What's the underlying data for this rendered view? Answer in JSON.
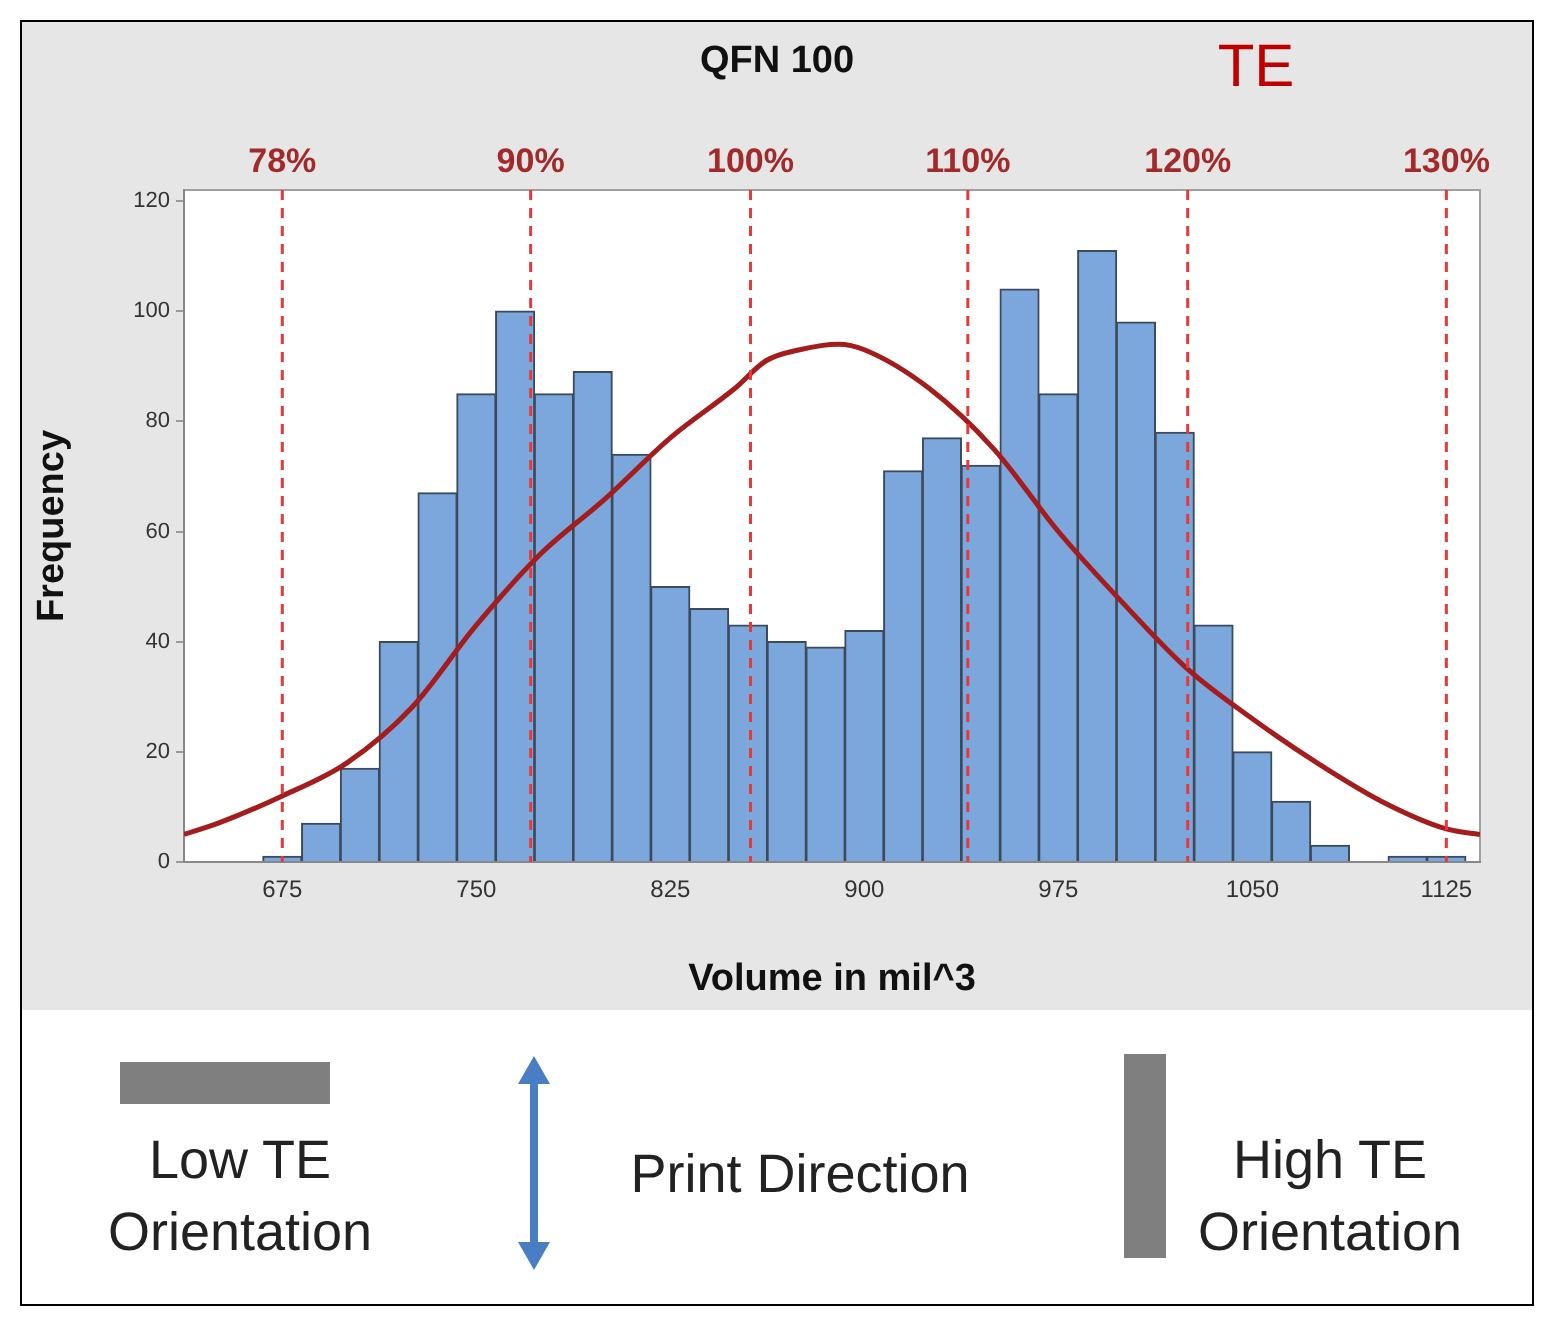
{
  "chart_data": {
    "type": "histogram",
    "title": "QFN 100",
    "xlabel": "Volume in mil^3",
    "ylabel": "Frequency",
    "bins": [
      667.5,
      682.5,
      697.5,
      712.5,
      727.5,
      742.5,
      757.5,
      772.5,
      787.5,
      802.5,
      817.5,
      832.5,
      847.5,
      862.5,
      877.5,
      892.5,
      907.5,
      922.5,
      937.5,
      952.5,
      967.5,
      982.5,
      997.5,
      1012.5,
      1027.5,
      1042.5,
      1057.5,
      1072.5,
      1087.5,
      1102.5,
      1117.5,
      1132.5
    ],
    "series": [
      {
        "color": "#7ba7dc",
        "values": [
          1,
          7,
          17,
          40,
          67,
          85,
          100,
          85,
          89,
          74,
          50,
          46,
          43,
          40,
          39,
          42,
          71,
          77,
          72,
          104,
          85,
          111,
          98,
          78,
          43,
          20,
          11,
          3,
          0,
          1,
          1
        ]
      },
      {
        "type": "line",
        "color": "#a51c1c",
        "x": [
          637,
          650,
          675,
          700,
          725,
          750,
          775,
          800,
          825,
          850,
          862,
          875,
          890,
          900,
          925,
          950,
          975,
          1000,
          1025,
          1050,
          1075,
          1100,
          1125,
          1138
        ],
        "values": [
          5,
          7,
          12,
          18,
          28,
          43,
          56,
          66,
          77,
          86,
          91,
          93,
          94,
          93,
          86,
          75,
          60,
          47,
          35,
          26,
          18,
          11,
          6,
          5
        ]
      }
    ],
    "xlim": [
      637,
      1138
    ],
    "xticks": [
      675,
      750,
      825,
      900,
      975,
      1050,
      1125
    ],
    "ylim": [
      0,
      122
    ],
    "yticks": [
      0,
      20,
      40,
      60,
      80,
      100,
      120
    ],
    "ref_lines": [
      {
        "axis": "x",
        "value": 675,
        "color": "#e8393a",
        "line_style": "dashed"
      },
      {
        "axis": "x",
        "value": 771,
        "color": "#e8393a",
        "line_style": "dashed"
      },
      {
        "axis": "x",
        "value": 856,
        "color": "#e8393a",
        "line_style": "dashed"
      },
      {
        "axis": "x",
        "value": 940,
        "color": "#e8393a",
        "line_style": "dashed"
      },
      {
        "axis": "x",
        "value": 1025,
        "color": "#e8393a",
        "line_style": "dashed"
      },
      {
        "axis": "x",
        "value": 1125,
        "color": "#e8393a",
        "line_style": "dashed"
      }
    ],
    "annotations": [
      "TE",
      "Low TE Orientation",
      "Print Direction",
      "High TE Orientation",
      "78%",
      "90%",
      "100%",
      "110%",
      "120%",
      "130%"
    ]
  }
}
